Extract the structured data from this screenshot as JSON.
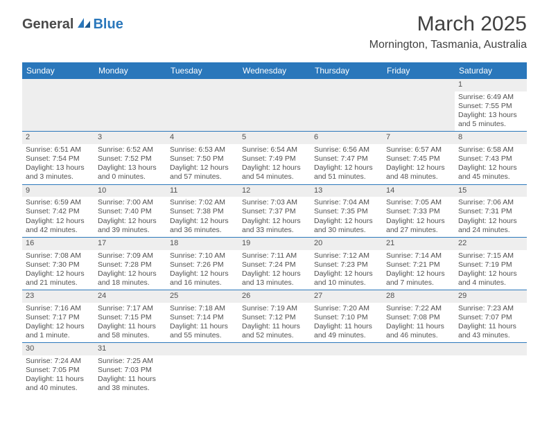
{
  "logo": {
    "part1": "General",
    "part2": "Blue"
  },
  "title": "March 2025",
  "location": "Mornington, Tasmania, Australia",
  "colors": {
    "accent": "#2a77bb",
    "header_text": "#ffffff",
    "body_text": "#505050",
    "empty_bg": "#eeeeee"
  },
  "weekdays": [
    "Sunday",
    "Monday",
    "Tuesday",
    "Wednesday",
    "Thursday",
    "Friday",
    "Saturday"
  ],
  "weeks": [
    [
      null,
      null,
      null,
      null,
      null,
      null,
      {
        "n": "1",
        "sr": "Sunrise: 6:49 AM",
        "ss": "Sunset: 7:55 PM",
        "dl": "Daylight: 13 hours and 5 minutes."
      }
    ],
    [
      {
        "n": "2",
        "sr": "Sunrise: 6:51 AM",
        "ss": "Sunset: 7:54 PM",
        "dl": "Daylight: 13 hours and 3 minutes."
      },
      {
        "n": "3",
        "sr": "Sunrise: 6:52 AM",
        "ss": "Sunset: 7:52 PM",
        "dl": "Daylight: 13 hours and 0 minutes."
      },
      {
        "n": "4",
        "sr": "Sunrise: 6:53 AM",
        "ss": "Sunset: 7:50 PM",
        "dl": "Daylight: 12 hours and 57 minutes."
      },
      {
        "n": "5",
        "sr": "Sunrise: 6:54 AM",
        "ss": "Sunset: 7:49 PM",
        "dl": "Daylight: 12 hours and 54 minutes."
      },
      {
        "n": "6",
        "sr": "Sunrise: 6:56 AM",
        "ss": "Sunset: 7:47 PM",
        "dl": "Daylight: 12 hours and 51 minutes."
      },
      {
        "n": "7",
        "sr": "Sunrise: 6:57 AM",
        "ss": "Sunset: 7:45 PM",
        "dl": "Daylight: 12 hours and 48 minutes."
      },
      {
        "n": "8",
        "sr": "Sunrise: 6:58 AM",
        "ss": "Sunset: 7:43 PM",
        "dl": "Daylight: 12 hours and 45 minutes."
      }
    ],
    [
      {
        "n": "9",
        "sr": "Sunrise: 6:59 AM",
        "ss": "Sunset: 7:42 PM",
        "dl": "Daylight: 12 hours and 42 minutes."
      },
      {
        "n": "10",
        "sr": "Sunrise: 7:00 AM",
        "ss": "Sunset: 7:40 PM",
        "dl": "Daylight: 12 hours and 39 minutes."
      },
      {
        "n": "11",
        "sr": "Sunrise: 7:02 AM",
        "ss": "Sunset: 7:38 PM",
        "dl": "Daylight: 12 hours and 36 minutes."
      },
      {
        "n": "12",
        "sr": "Sunrise: 7:03 AM",
        "ss": "Sunset: 7:37 PM",
        "dl": "Daylight: 12 hours and 33 minutes."
      },
      {
        "n": "13",
        "sr": "Sunrise: 7:04 AM",
        "ss": "Sunset: 7:35 PM",
        "dl": "Daylight: 12 hours and 30 minutes."
      },
      {
        "n": "14",
        "sr": "Sunrise: 7:05 AM",
        "ss": "Sunset: 7:33 PM",
        "dl": "Daylight: 12 hours and 27 minutes."
      },
      {
        "n": "15",
        "sr": "Sunrise: 7:06 AM",
        "ss": "Sunset: 7:31 PM",
        "dl": "Daylight: 12 hours and 24 minutes."
      }
    ],
    [
      {
        "n": "16",
        "sr": "Sunrise: 7:08 AM",
        "ss": "Sunset: 7:30 PM",
        "dl": "Daylight: 12 hours and 21 minutes."
      },
      {
        "n": "17",
        "sr": "Sunrise: 7:09 AM",
        "ss": "Sunset: 7:28 PM",
        "dl": "Daylight: 12 hours and 18 minutes."
      },
      {
        "n": "18",
        "sr": "Sunrise: 7:10 AM",
        "ss": "Sunset: 7:26 PM",
        "dl": "Daylight: 12 hours and 16 minutes."
      },
      {
        "n": "19",
        "sr": "Sunrise: 7:11 AM",
        "ss": "Sunset: 7:24 PM",
        "dl": "Daylight: 12 hours and 13 minutes."
      },
      {
        "n": "20",
        "sr": "Sunrise: 7:12 AM",
        "ss": "Sunset: 7:23 PM",
        "dl": "Daylight: 12 hours and 10 minutes."
      },
      {
        "n": "21",
        "sr": "Sunrise: 7:14 AM",
        "ss": "Sunset: 7:21 PM",
        "dl": "Daylight: 12 hours and 7 minutes."
      },
      {
        "n": "22",
        "sr": "Sunrise: 7:15 AM",
        "ss": "Sunset: 7:19 PM",
        "dl": "Daylight: 12 hours and 4 minutes."
      }
    ],
    [
      {
        "n": "23",
        "sr": "Sunrise: 7:16 AM",
        "ss": "Sunset: 7:17 PM",
        "dl": "Daylight: 12 hours and 1 minute."
      },
      {
        "n": "24",
        "sr": "Sunrise: 7:17 AM",
        "ss": "Sunset: 7:15 PM",
        "dl": "Daylight: 11 hours and 58 minutes."
      },
      {
        "n": "25",
        "sr": "Sunrise: 7:18 AM",
        "ss": "Sunset: 7:14 PM",
        "dl": "Daylight: 11 hours and 55 minutes."
      },
      {
        "n": "26",
        "sr": "Sunrise: 7:19 AM",
        "ss": "Sunset: 7:12 PM",
        "dl": "Daylight: 11 hours and 52 minutes."
      },
      {
        "n": "27",
        "sr": "Sunrise: 7:20 AM",
        "ss": "Sunset: 7:10 PM",
        "dl": "Daylight: 11 hours and 49 minutes."
      },
      {
        "n": "28",
        "sr": "Sunrise: 7:22 AM",
        "ss": "Sunset: 7:08 PM",
        "dl": "Daylight: 11 hours and 46 minutes."
      },
      {
        "n": "29",
        "sr": "Sunrise: 7:23 AM",
        "ss": "Sunset: 7:07 PM",
        "dl": "Daylight: 11 hours and 43 minutes."
      }
    ],
    [
      {
        "n": "30",
        "sr": "Sunrise: 7:24 AM",
        "ss": "Sunset: 7:05 PM",
        "dl": "Daylight: 11 hours and 40 minutes."
      },
      {
        "n": "31",
        "sr": "Sunrise: 7:25 AM",
        "ss": "Sunset: 7:03 PM",
        "dl": "Daylight: 11 hours and 38 minutes."
      },
      null,
      null,
      null,
      null,
      null
    ]
  ]
}
